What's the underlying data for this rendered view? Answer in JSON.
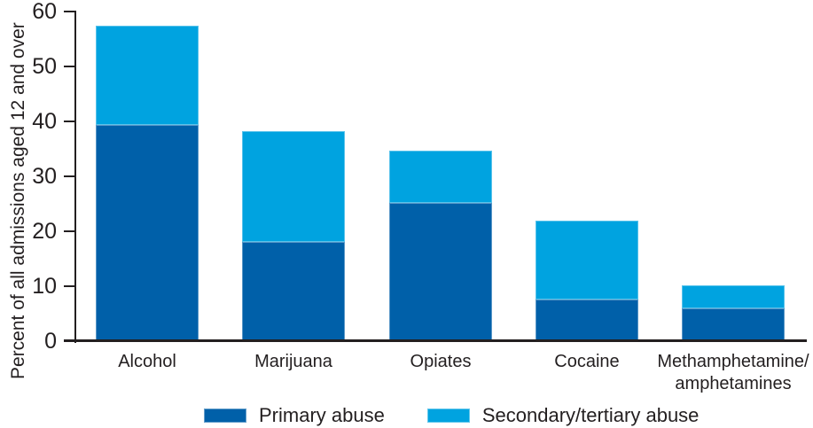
{
  "chart_data": {
    "type": "bar",
    "stacked": true,
    "title": "",
    "ylabel": "Percent of all admissions aged 12 and over",
    "xlabel": "",
    "ylim": [
      0,
      60
    ],
    "yticks": [
      0,
      10,
      20,
      30,
      40,
      50,
      60
    ],
    "grid": false,
    "legend_position": "bottom",
    "categories": [
      "Alcohol",
      "Marijuana",
      "Opiates",
      "Cocaine",
      "Methamphetamine/amphetamines"
    ],
    "category_label_lines": [
      [
        "Alcohol"
      ],
      [
        "Marijuana"
      ],
      [
        "Opiates"
      ],
      [
        "Cocaine"
      ],
      [
        "Methamphetamine/",
        "amphetamines"
      ]
    ],
    "series": [
      {
        "name": "Primary abuse",
        "color": "#0060A9",
        "values": [
          39.4,
          18.1,
          25.1,
          7.6,
          5.9
        ]
      },
      {
        "name": "Secondary/tertiary abuse",
        "color": "#00A3E0",
        "values": [
          18.0,
          20.2,
          9.6,
          14.4,
          4.2
        ]
      }
    ],
    "stack_totals": [
      57.4,
      38.3,
      34.7,
      22.0,
      10.1
    ]
  },
  "colors": {
    "axis": "#231F20",
    "text": "#231F20",
    "background": "#FFFFFF",
    "primary_series": "#0060A9",
    "secondary_series": "#00A3E0"
  }
}
